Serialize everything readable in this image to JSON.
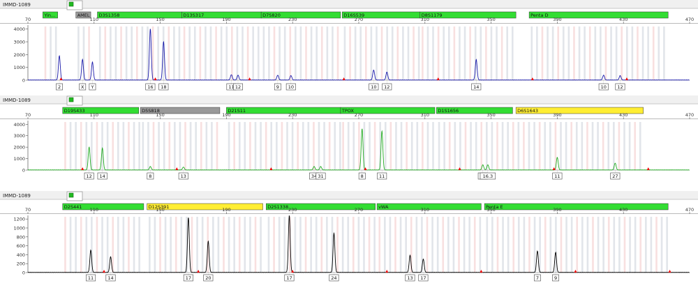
{
  "panel_sample_names": [
    "IMMD-1089",
    "IMMD-1089",
    "IMMD-1089"
  ],
  "x_axis_ticks": [
    70,
    110,
    150,
    190,
    230,
    270,
    310,
    350,
    390,
    430,
    470
  ],
  "colors": {
    "marker_green": "#33dd33",
    "marker_gray": "#999999",
    "marker_yellow": "#ffee33",
    "blue_trace": "#1a1aaa",
    "green_trace": "#22aa22",
    "black_trace": "#000000",
    "artifact_red": "#ee0000",
    "bin_gray": "#dde0e6",
    "bin_pink": "#f7dada",
    "panel_header": "#f0f0f0"
  },
  "chart_data": [
    {
      "type": "line",
      "title": "IMMD-1089",
      "xlim": [
        70,
        470
      ],
      "ylim": [
        0,
        4200
      ],
      "y_ticks": [
        0,
        1000,
        2000,
        3000,
        4000
      ],
      "grid": false,
      "series_color": "blue",
      "markers": [
        {
          "label": "Yin...",
          "x_start": 79,
          "x_end": 88,
          "color": "green"
        },
        {
          "label": "AMEL",
          "x_start": 99,
          "x_end": 108,
          "color": "gray"
        },
        {
          "label": "D3S1358",
          "x_start": 112,
          "x_end": 163,
          "color": "green"
        },
        {
          "label": "D13S317",
          "x_start": 163,
          "x_end": 211,
          "color": "green"
        },
        {
          "label": "D7S820",
          "x_start": 211,
          "x_end": 259,
          "color": "green"
        },
        {
          "label": "D16S539",
          "x_start": 260,
          "x_end": 307,
          "color": "green"
        },
        {
          "label": "D8S1179",
          "x_start": 307,
          "x_end": 365,
          "color": "green"
        },
        {
          "label": "Penta D",
          "x_start": 373,
          "x_end": 457,
          "color": "green"
        }
      ],
      "peaks": [
        {
          "x": 89,
          "height": 1900,
          "label": "2"
        },
        {
          "x": 103,
          "height": 1600,
          "label": "X"
        },
        {
          "x": 109,
          "height": 1400,
          "label": "Y"
        },
        {
          "x": 144,
          "height": 4000,
          "label": "16"
        },
        {
          "x": 152,
          "height": 3000,
          "label": "18"
        },
        {
          "x": 193,
          "height": 420,
          "label": "11"
        },
        {
          "x": 197,
          "height": 380,
          "label": "12"
        },
        {
          "x": 221,
          "height": 380,
          "label": "9"
        },
        {
          "x": 229,
          "height": 350,
          "label": "10"
        },
        {
          "x": 279,
          "height": 780,
          "label": "10"
        },
        {
          "x": 287,
          "height": 620,
          "label": "12"
        },
        {
          "x": 341,
          "height": 1600,
          "label": "14"
        },
        {
          "x": 418,
          "height": 380,
          "label": "10"
        },
        {
          "x": 428,
          "height": 340,
          "label": "12"
        }
      ]
    },
    {
      "type": "line",
      "title": "IMMD-1089",
      "xlim": [
        70,
        470
      ],
      "ylim": [
        0,
        4200
      ],
      "y_ticks": [
        0,
        1000,
        2000,
        3000,
        4000
      ],
      "grid": false,
      "series_color": "green",
      "markers": [
        {
          "label": "D19S433",
          "x_start": 91,
          "x_end": 137,
          "color": "green"
        },
        {
          "label": "D5S818",
          "x_start": 138,
          "x_end": 186,
          "color": "gray"
        },
        {
          "label": "D21S11",
          "x_start": 190,
          "x_end": 259,
          "color": "green"
        },
        {
          "label": "TPOX",
          "x_start": 259,
          "x_end": 316,
          "color": "green"
        },
        {
          "label": "D1S1656",
          "x_start": 317,
          "x_end": 363,
          "color": "green"
        },
        {
          "label": "D6S1643",
          "x_start": 365,
          "x_end": 442,
          "color": "yellow"
        }
      ],
      "peaks": [
        {
          "x": 107,
          "height": 2000,
          "label": "12"
        },
        {
          "x": 115,
          "height": 1900,
          "label": "14"
        },
        {
          "x": 144,
          "height": 300,
          "label": "8"
        },
        {
          "x": 164,
          "height": 250,
          "label": "13"
        },
        {
          "x": 243,
          "height": 300,
          "label": "34"
        },
        {
          "x": 247,
          "height": 300,
          "label": "31"
        },
        {
          "x": 272,
          "height": 3600,
          "label": "8"
        },
        {
          "x": 284,
          "height": 3400,
          "label": "11"
        },
        {
          "x": 345,
          "height": 450,
          "label": "16"
        },
        {
          "x": 348,
          "height": 450,
          "label": "16.3"
        },
        {
          "x": 390,
          "height": 1100,
          "label": "11"
        },
        {
          "x": 425,
          "height": 600,
          "label": "27"
        }
      ]
    },
    {
      "type": "line",
      "title": "IMMD-1089",
      "xlim": [
        70,
        470
      ],
      "ylim": [
        0,
        1250
      ],
      "y_ticks": [
        0,
        200,
        400,
        600,
        800,
        1000,
        1200
      ],
      "grid": false,
      "series_color": "black",
      "markers": [
        {
          "label": "D2S441",
          "x_start": 91,
          "x_end": 140,
          "color": "green"
        },
        {
          "label": "D12S391",
          "x_start": 142,
          "x_end": 212,
          "color": "yellow"
        },
        {
          "label": "D2S1338",
          "x_start": 214,
          "x_end": 280,
          "color": "green"
        },
        {
          "label": "vWA",
          "x_start": 281,
          "x_end": 344,
          "color": "green"
        },
        {
          "label": "Penta E",
          "x_start": 346,
          "x_end": 457,
          "color": "green"
        }
      ],
      "peaks": [
        {
          "x": 108,
          "height": 500,
          "label": "11"
        },
        {
          "x": 120,
          "height": 350,
          "label": "14"
        },
        {
          "x": 167,
          "height": 1230,
          "label": "17"
        },
        {
          "x": 179,
          "height": 700,
          "label": "20"
        },
        {
          "x": 228,
          "height": 1280,
          "label": "17"
        },
        {
          "x": 255,
          "height": 880,
          "label": "24"
        },
        {
          "x": 301,
          "height": 380,
          "label": "13"
        },
        {
          "x": 309,
          "height": 300,
          "label": "17"
        },
        {
          "x": 378,
          "height": 480,
          "label": "7"
        },
        {
          "x": 389,
          "height": 450,
          "label": "9"
        }
      ]
    }
  ]
}
